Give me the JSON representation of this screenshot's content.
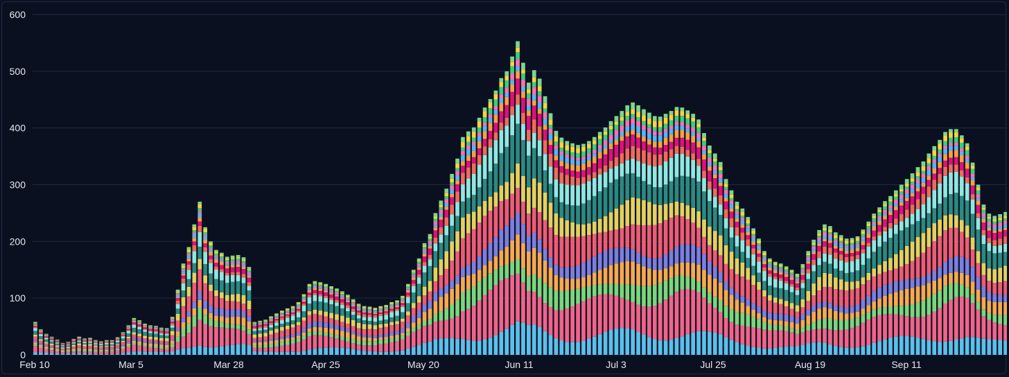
{
  "chart_data": {
    "type": "bar",
    "stacked": true,
    "title": "",
    "xlabel": "",
    "ylabel": "",
    "ylim": [
      0,
      600
    ],
    "yticks": [
      "0",
      "100",
      "200",
      "300",
      "400",
      "500",
      "600"
    ],
    "xticks": [
      "Feb 10",
      "Mar 5",
      "Mar 28",
      "Apr 25",
      "May 20",
      "Jun 11",
      "Jul 3",
      "Jul 25",
      "Aug 19",
      "Sep 11"
    ],
    "grid": true,
    "legend": "none",
    "layer_colors": [
      "#5bc0eb",
      "#f0648a",
      "#7bd67b",
      "#f5a950",
      "#7b7fe0",
      "#ef5b74",
      "#e3d160",
      "#2b8a80",
      "#8fe8e0",
      "#f26a5a",
      "#e0107a",
      "#ff9f43",
      "#4db8ff",
      "#ff6fb5",
      "#35d07f",
      "#ffd23f",
      "#7bd68f"
    ],
    "totals": [
      58,
      45,
      37,
      32,
      27,
      21,
      23,
      28,
      32,
      29,
      30,
      26,
      24,
      26,
      26,
      31,
      40,
      52,
      65,
      61,
      55,
      52,
      51,
      48,
      47,
      67,
      115,
      161,
      190,
      230,
      270,
      225,
      200,
      185,
      180,
      173,
      175,
      176,
      172,
      155,
      58,
      60,
      62,
      68,
      73,
      78,
      82,
      86,
      93,
      107,
      125,
      130,
      128,
      125,
      121,
      117,
      112,
      106,
      98,
      90,
      86,
      85,
      83,
      86,
      88,
      93,
      96,
      104,
      125,
      150,
      170,
      197,
      213,
      250,
      272,
      293,
      319,
      346,
      384,
      394,
      401,
      418,
      436,
      451,
      466,
      488,
      500,
      526,
      553,
      515,
      480,
      502,
      487,
      456,
      426,
      395,
      383,
      377,
      373,
      370,
      372,
      377,
      384,
      393,
      401,
      412,
      421,
      430,
      440,
      445,
      440,
      433,
      427,
      421,
      420,
      425,
      430,
      437,
      436,
      431,
      425,
      415,
      391,
      369,
      355,
      340,
      310,
      290,
      270,
      258,
      243,
      223,
      205,
      183,
      170,
      164,
      161,
      156,
      150,
      143,
      160,
      183,
      203,
      220,
      230,
      227,
      216,
      211,
      205,
      206,
      209,
      221,
      235,
      249,
      260,
      271,
      280,
      290,
      300,
      310,
      320,
      331,
      341,
      355,
      368,
      379,
      393,
      398,
      398,
      387,
      373,
      339,
      300,
      265,
      249,
      245,
      248,
      252
    ]
  }
}
